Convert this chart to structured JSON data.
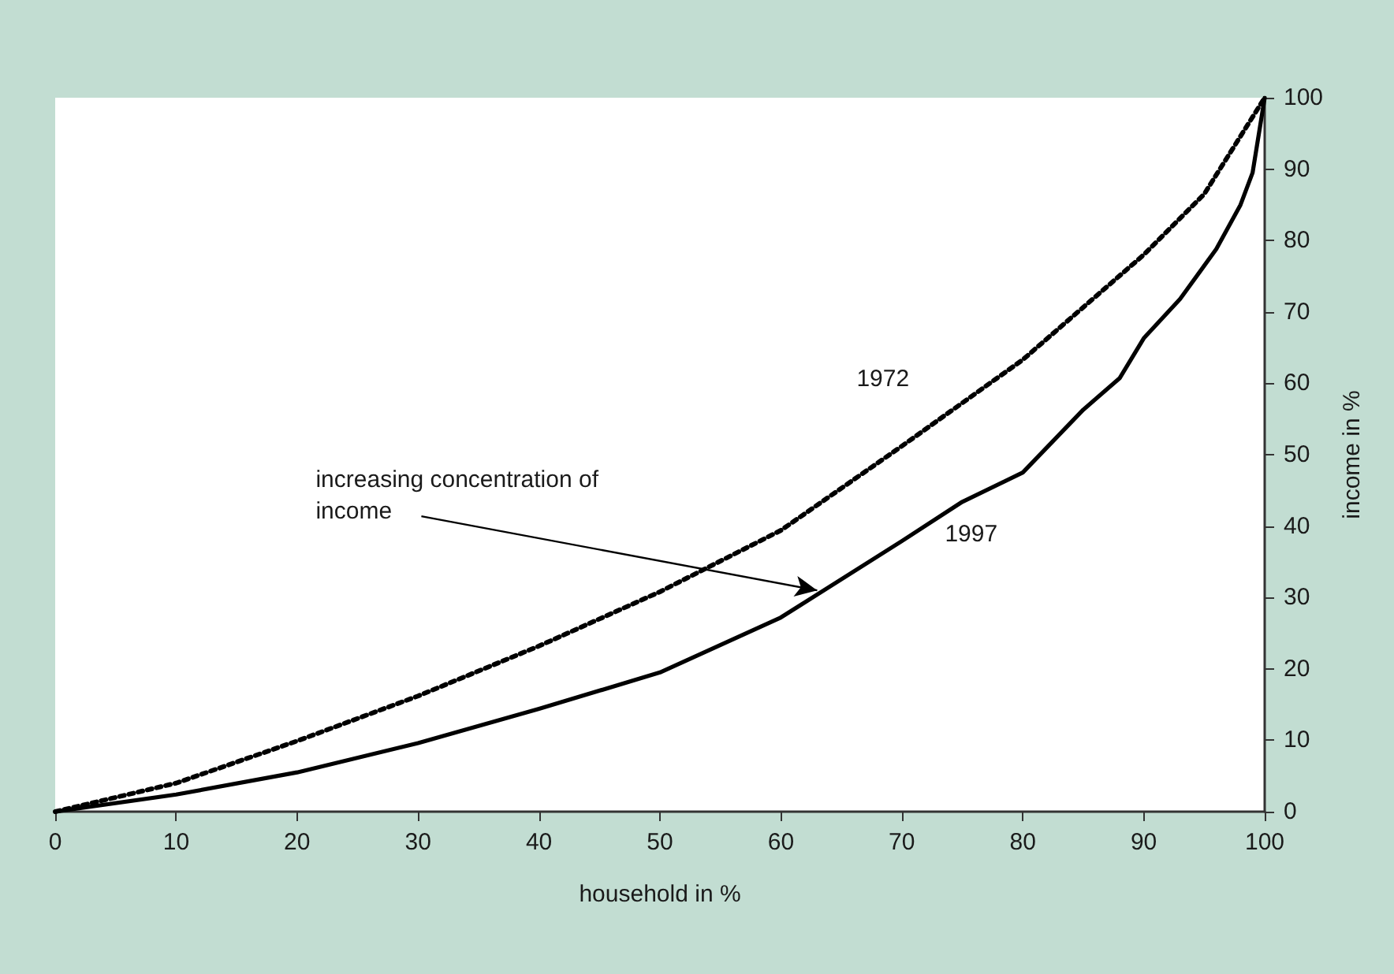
{
  "chart_data": {
    "type": "line",
    "xlabel": "household in %",
    "ylabel": "income in %",
    "xlim": [
      0,
      100
    ],
    "xticks": [
      0,
      10,
      20,
      30,
      40,
      50,
      60,
      70,
      80,
      90,
      100
    ],
    "ylim": [
      0,
      100
    ],
    "yticks": [
      0,
      10,
      20,
      30,
      40,
      50,
      60,
      70,
      80,
      90,
      100
    ],
    "grid": false,
    "legend": false,
    "marker": "none",
    "series": [
      {
        "name": "1972",
        "color": "#000000",
        "line_style": "dotted",
        "x": [
          0,
          10,
          20,
          30,
          40,
          50,
          60,
          70,
          80,
          90,
          95,
          100
        ],
        "values": [
          0,
          4,
          9.9,
          16.2,
          23.2,
          30.8,
          39.4,
          51.2,
          63.3,
          78,
          86.5,
          100
        ]
      },
      {
        "name": "1997",
        "color": "#000000",
        "line_style": "solid",
        "x": [
          0,
          10,
          20,
          30,
          40,
          50,
          60,
          70,
          75,
          80,
          85,
          88,
          90,
          93,
          96,
          98,
          99,
          100
        ],
        "values": [
          0,
          2.4,
          5.5,
          9.6,
          14.4,
          19.5,
          27.2,
          37.9,
          43.4,
          47.5,
          56.3,
          60.7,
          66.3,
          71.8,
          78.8,
          85,
          89.5,
          100
        ]
      }
    ],
    "annotations": [
      {
        "text": "increasing concentration of income",
        "x": 63,
        "y": 31
      }
    ]
  }
}
